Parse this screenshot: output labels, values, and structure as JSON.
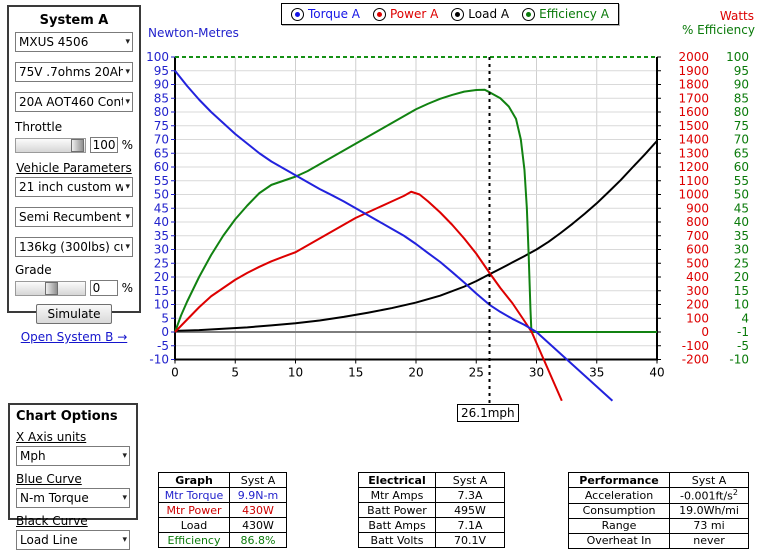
{
  "system_a": {
    "title": "System A",
    "motor_select": "MXUS 4506",
    "battery_select": "75V .7ohms 20Ah c",
    "controller_select": "20A AOT460 Contro",
    "throttle_label": "Throttle",
    "throttle_value": "100",
    "throttle_unit": "%",
    "vehicle_params_label": "Vehicle Parameters",
    "wheel_select": "21 inch custom whe",
    "position_select": "Semi Recumbent",
    "weight_select": "136kg (300lbs) cust",
    "grade_label": "Grade",
    "grade_value": "0",
    "grade_unit": "%",
    "simulate_button": "Simulate",
    "open_system_b": "Open System B →"
  },
  "chart_options": {
    "title": "Chart Options",
    "x_axis_label": "X Axis units",
    "x_axis_select": "Mph",
    "blue_curve_label": "Blue Curve",
    "blue_curve_select": "N-m Torque",
    "black_curve_label": "Black Curve",
    "black_curve_select": "Load Line"
  },
  "legend": {
    "items": [
      {
        "label": "Torque A",
        "color": "#1414e6"
      },
      {
        "label": "Power A",
        "color": "#dd0000"
      },
      {
        "label": "Load A",
        "color": "#000000"
      },
      {
        "label": "Efficiency A",
        "color": "#0a7a0a"
      }
    ]
  },
  "tables": {
    "graph": {
      "header": [
        "Graph",
        "Syst A"
      ],
      "rows": [
        {
          "label": "Mtr Torque",
          "value": "9.9N-m",
          "color": "#2222cc"
        },
        {
          "label": "Mtr Power",
          "value": "430W",
          "color": "#cc0000"
        },
        {
          "label": "Load",
          "value": "430W",
          "color": "#000000"
        },
        {
          "label": "Efficiency",
          "value": "86.8%",
          "color": "#0a7a0a"
        }
      ]
    },
    "electrical": {
      "header": [
        "Electrical",
        "Syst A"
      ],
      "rows": [
        {
          "label": "Mtr Amps",
          "value": "7.3A",
          "color": "#000000"
        },
        {
          "label": "Batt Power",
          "value": "495W",
          "color": "#000000"
        },
        {
          "label": "Batt Amps",
          "value": "7.1A",
          "color": "#000000"
        },
        {
          "label": "Batt Volts",
          "value": "70.1V",
          "color": "#000000"
        }
      ]
    },
    "performance": {
      "header": [
        "Performance",
        "Syst A"
      ],
      "rows": [
        {
          "label": "Acceleration",
          "value": "-0.001ft/s²",
          "color": "#000000"
        },
        {
          "label": "Consumption",
          "value": "19.0Wh/mi",
          "color": "#000000"
        },
        {
          "label": "Range",
          "value": "73 mi",
          "color": "#000000"
        },
        {
          "label": "Overheat In",
          "value": "never",
          "color": "#000000"
        }
      ]
    }
  },
  "chart_data": {
    "type": "line",
    "left_axis_title": "Newton-Metres",
    "right_axis_title_1": "Watts",
    "right_axis_title_2": "% Efficiency",
    "x_ticks": [
      0,
      5,
      10,
      15,
      20,
      25,
      30,
      35,
      40
    ],
    "nm_ticks": [
      100,
      95,
      90,
      85,
      80,
      75,
      70,
      65,
      60,
      55,
      50,
      45,
      40,
      35,
      30,
      25,
      20,
      15,
      10,
      5,
      0,
      -5,
      -10
    ],
    "watts_ticks": [
      2000,
      1900,
      1800,
      1700,
      1600,
      1500,
      1400,
      1300,
      1200,
      1100,
      1000,
      900,
      800,
      700,
      600,
      500,
      400,
      300,
      200,
      100,
      0,
      -100,
      -200
    ],
    "eff_ticks": [
      100,
      95,
      90,
      85,
      80,
      75,
      70,
      65,
      60,
      55,
      50,
      45,
      40,
      35,
      30,
      25,
      20,
      15,
      10,
      4,
      -1,
      -5,
      -10
    ],
    "xlim": [
      0,
      40
    ],
    "ylim_nm": [
      -10,
      100
    ],
    "grid": true,
    "annotation": {
      "x": 26.1,
      "label": "26.1mph"
    },
    "series": [
      {
        "name": "load",
        "color": "#000000",
        "points": [
          [
            0,
            0.4
          ],
          [
            2,
            0.7
          ],
          [
            4,
            1.2
          ],
          [
            6,
            1.7
          ],
          [
            8,
            2.4
          ],
          [
            10,
            3.2
          ],
          [
            12,
            4.2
          ],
          [
            14,
            5.5
          ],
          [
            16,
            7
          ],
          [
            18,
            8.7
          ],
          [
            20,
            10.7
          ],
          [
            22,
            13.2
          ],
          [
            24,
            16.5
          ],
          [
            25,
            18.5
          ],
          [
            26.1,
            21
          ],
          [
            27,
            23
          ],
          [
            28,
            25.3
          ],
          [
            29,
            27.6
          ],
          [
            30,
            30
          ],
          [
            31,
            32.8
          ],
          [
            32,
            36
          ],
          [
            33,
            39.4
          ],
          [
            34,
            43
          ],
          [
            35,
            46.8
          ],
          [
            36,
            51
          ],
          [
            37,
            55.3
          ],
          [
            38,
            60
          ],
          [
            39,
            64.6
          ],
          [
            40,
            69.5
          ]
        ]
      },
      {
        "name": "efficiency",
        "color": "#118211",
        "points": [
          [
            0,
            0
          ],
          [
            0.5,
            6
          ],
          [
            1,
            11
          ],
          [
            2,
            20
          ],
          [
            3,
            28
          ],
          [
            4,
            35
          ],
          [
            5,
            41
          ],
          [
            6,
            46
          ],
          [
            7,
            50.5
          ],
          [
            8,
            53.5
          ],
          [
            9,
            55
          ],
          [
            10,
            56.5
          ],
          [
            11,
            58.5
          ],
          [
            12,
            61
          ],
          [
            13,
            63.5
          ],
          [
            14,
            66
          ],
          [
            15,
            68.5
          ],
          [
            16,
            71
          ],
          [
            17,
            73.5
          ],
          [
            18,
            76
          ],
          [
            19,
            78.5
          ],
          [
            20,
            81
          ],
          [
            21,
            83
          ],
          [
            22,
            84.8
          ],
          [
            23,
            86.2
          ],
          [
            24,
            87.4
          ],
          [
            25,
            88
          ],
          [
            25.7,
            88.1
          ],
          [
            26.1,
            87.2
          ],
          [
            27,
            85
          ],
          [
            27.7,
            82
          ],
          [
            28.3,
            77.5
          ],
          [
            28.7,
            70
          ],
          [
            29,
            59
          ],
          [
            29.2,
            45
          ],
          [
            29.35,
            28
          ],
          [
            29.5,
            8
          ],
          [
            29.58,
            0
          ],
          [
            40,
            0
          ]
        ]
      },
      {
        "name": "power",
        "color": "#dd0000",
        "points": [
          [
            0,
            0
          ],
          [
            1,
            4.5
          ],
          [
            2,
            9
          ],
          [
            3,
            13
          ],
          [
            4,
            16
          ],
          [
            5,
            19
          ],
          [
            6,
            21.5
          ],
          [
            7,
            23.7
          ],
          [
            8,
            25.7
          ],
          [
            9,
            27.4
          ],
          [
            10,
            29
          ],
          [
            11,
            31.5
          ],
          [
            12,
            34
          ],
          [
            13,
            36.5
          ],
          [
            14,
            39
          ],
          [
            15,
            41.5
          ],
          [
            16,
            43.5
          ],
          [
            17,
            45.5
          ],
          [
            18,
            47.5
          ],
          [
            19,
            49.5
          ],
          [
            19.6,
            51
          ],
          [
            20.3,
            50
          ],
          [
            21,
            47.5
          ],
          [
            22,
            43.5
          ],
          [
            23,
            39
          ],
          [
            24,
            34
          ],
          [
            25,
            28.5
          ],
          [
            26.1,
            21.5
          ],
          [
            27,
            16
          ],
          [
            28,
            10.5
          ],
          [
            29,
            4
          ],
          [
            29.6,
            0
          ],
          [
            32.1,
            -25
          ]
        ]
      },
      {
        "name": "torque",
        "color": "#2222dd",
        "points": [
          [
            0,
            95
          ],
          [
            1,
            89.5
          ],
          [
            2,
            84.5
          ],
          [
            3,
            80
          ],
          [
            4,
            76
          ],
          [
            5,
            72
          ],
          [
            6,
            68.5
          ],
          [
            7,
            65
          ],
          [
            8,
            62
          ],
          [
            9,
            59.5
          ],
          [
            10,
            57
          ],
          [
            11,
            54.5
          ],
          [
            12,
            52
          ],
          [
            13,
            49.8
          ],
          [
            14,
            47.5
          ],
          [
            15,
            45
          ],
          [
            16,
            42.5
          ],
          [
            17,
            40
          ],
          [
            18,
            37.5
          ],
          [
            19,
            35
          ],
          [
            20,
            32
          ],
          [
            21,
            28.7
          ],
          [
            22,
            25.5
          ],
          [
            23,
            21.8
          ],
          [
            24,
            18
          ],
          [
            25,
            14
          ],
          [
            26.1,
            9.9
          ],
          [
            27,
            7.3
          ],
          [
            28,
            4.8
          ],
          [
            29,
            2.6
          ],
          [
            30,
            0
          ],
          [
            36.3,
            -25
          ]
        ]
      }
    ]
  }
}
